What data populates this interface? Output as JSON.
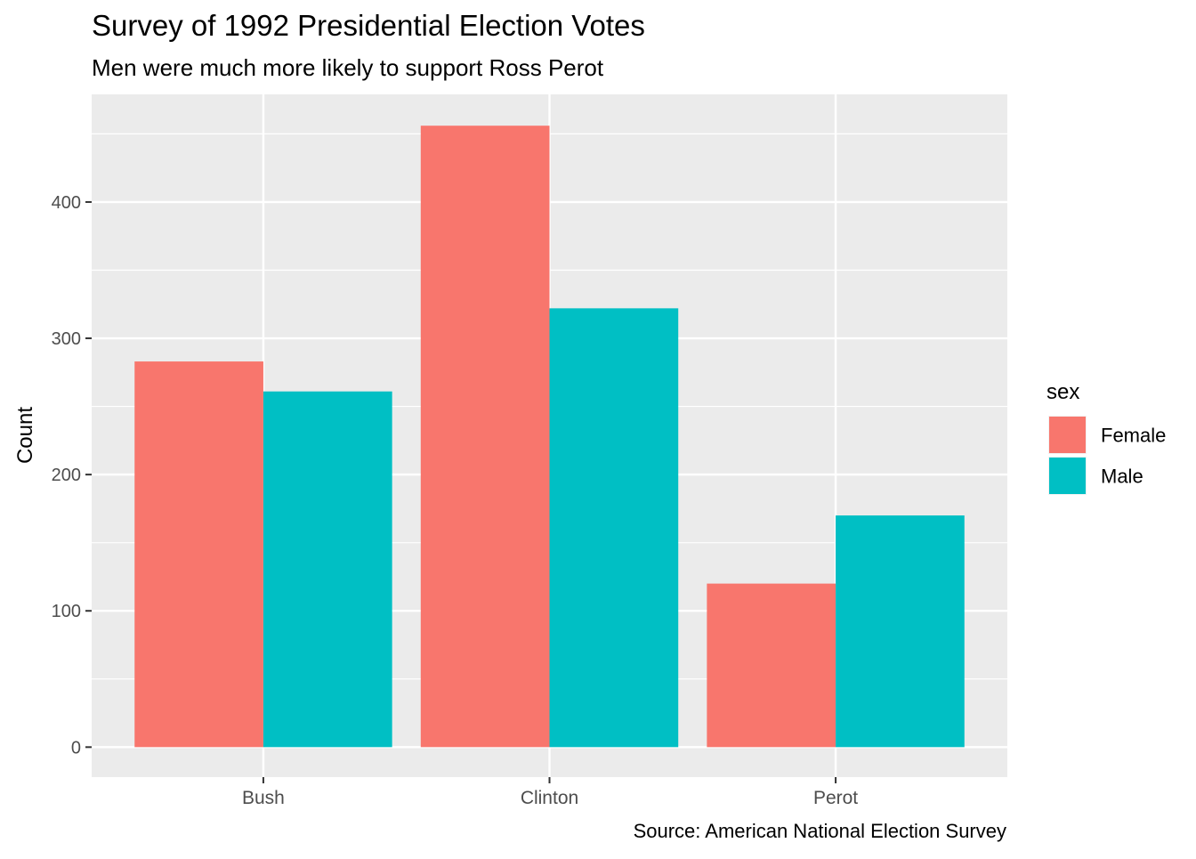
{
  "chart_data": {
    "type": "bar",
    "title": "Survey of 1992 Presidential Election Votes",
    "subtitle": "Men were much more likely to support Ross Perot",
    "caption": "Source: American National Election Survey",
    "xlabel": "",
    "ylabel": "Count",
    "categories": [
      "Bush",
      "Clinton",
      "Perot"
    ],
    "series": [
      {
        "name": "Female",
        "color": "#F8766D",
        "values": [
          283,
          456,
          120
        ]
      },
      {
        "name": "Male",
        "color": "#00BFC4",
        "values": [
          261,
          322,
          170
        ]
      }
    ],
    "ylim": [
      -22,
      479
    ],
    "yticks": [
      0,
      100,
      200,
      300,
      400
    ],
    "ytick_labels": [
      "0",
      "100",
      "200",
      "300",
      "400"
    ],
    "legend": {
      "title": "sex",
      "position": "right"
    },
    "grid": true,
    "panel_background": "#EBEBEB",
    "grid_color": "#FFFFFF"
  }
}
